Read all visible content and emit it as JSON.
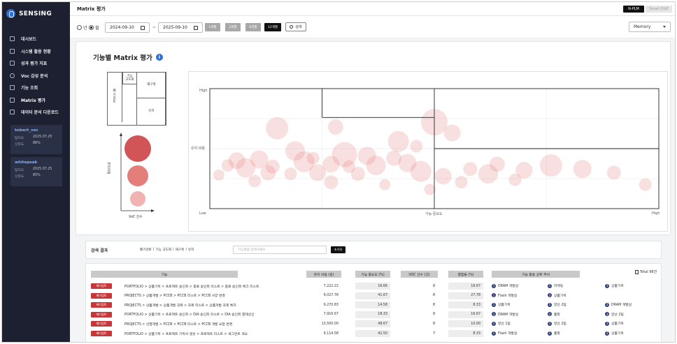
{
  "app": {
    "name": "SENSING",
    "page_title": "Matrix 평가"
  },
  "top_buttons": {
    "nplm": "N-PLM",
    "smart": "Smart D&E"
  },
  "sidebar": {
    "items": [
      {
        "label": "대시보드",
        "icon": "dashboard-icon"
      },
      {
        "label": "시스템 활용 현황",
        "icon": "monitor-icon"
      },
      {
        "label": "성과 평가 지표",
        "icon": "chart-icon"
      },
      {
        "label": "Voc 감성 분석",
        "icon": "smile-icon"
      },
      {
        "label": "기능 조회",
        "icon": "search-icon"
      },
      {
        "label": "Matrix 평가",
        "icon": "matrix-icon"
      },
      {
        "label": "데이터 분석 다운로드",
        "icon": "download-icon"
      }
    ],
    "users": [
      {
        "name": "kobert_voc",
        "date_label": "탐지도",
        "date": "2025.07.25",
        "score_label": "신뢰도",
        "score": "86%"
      },
      {
        "name": "whitepeak",
        "date_label": "탐지도",
        "date": "2025.07.25",
        "score_label": "신뢰도",
        "score": "85%"
      }
    ]
  },
  "filter": {
    "radio_year": "년",
    "radio_month": "월",
    "date_from": "2024-09-10",
    "date_to": "2025-09-10",
    "date_sep": "~",
    "ranges": [
      "1개월",
      "3개월",
      "6개월",
      "12개월"
    ],
    "search_label": "검색",
    "select_value": "Memory"
  },
  "matrix": {
    "title": "기능별 Matrix 평가",
    "info": "i",
    "legend": {
      "top_left": "기능\n고도화",
      "top_right": "재구축",
      "left": "폐\n기\n검\n토",
      "bottom_right": "유지",
      "y_label": "유지비용",
      "x_label": "VoC 건수"
    },
    "axes": {
      "y_high": "High",
      "y_mid": "유지 비용",
      "x_low": "Low",
      "x_mid": "기능 중요도",
      "x_high": "High"
    }
  },
  "chart_data": {
    "type": "scatter",
    "xlabel": "기능 중요도",
    "ylabel": "유지 비용",
    "x_range_labels": [
      "Low",
      "High"
    ],
    "y_range_labels": [
      "Low",
      "High"
    ],
    "xlim": [
      0,
      100
    ],
    "ylim": [
      0,
      100
    ],
    "points": [
      {
        "x": 15,
        "y": 67,
        "r": 16
      },
      {
        "x": 28,
        "y": 68,
        "r": 11
      },
      {
        "x": 50,
        "y": 72,
        "r": 19
      },
      {
        "x": 54,
        "y": 63,
        "r": 12
      },
      {
        "x": 42,
        "y": 56,
        "r": 15
      },
      {
        "x": 46,
        "y": 52,
        "r": 9
      },
      {
        "x": 19,
        "y": 48,
        "r": 14
      },
      {
        "x": 30,
        "y": 45,
        "r": 18
      },
      {
        "x": 35,
        "y": 44,
        "r": 13
      },
      {
        "x": 23,
        "y": 42,
        "r": 9
      },
      {
        "x": 6,
        "y": 40,
        "r": 12
      },
      {
        "x": 11,
        "y": 41,
        "r": 13
      },
      {
        "x": 4,
        "y": 36,
        "r": 9
      },
      {
        "x": 14,
        "y": 35,
        "r": 10
      },
      {
        "x": 21,
        "y": 39,
        "r": 15
      },
      {
        "x": 27,
        "y": 37,
        "r": 12
      },
      {
        "x": 31,
        "y": 35,
        "r": 9
      },
      {
        "x": 37,
        "y": 36,
        "r": 14
      },
      {
        "x": 41,
        "y": 42,
        "r": 11
      },
      {
        "x": 44,
        "y": 38,
        "r": 13
      },
      {
        "x": 8,
        "y": 34,
        "r": 14
      },
      {
        "x": 13,
        "y": 30,
        "r": 11
      },
      {
        "x": 18,
        "y": 29,
        "r": 9
      },
      {
        "x": 24,
        "y": 30,
        "r": 12
      },
      {
        "x": 33,
        "y": 29,
        "r": 10
      },
      {
        "x": 47,
        "y": 31,
        "r": 15
      },
      {
        "x": 52,
        "y": 27,
        "r": 12
      },
      {
        "x": 58,
        "y": 33,
        "r": 10
      },
      {
        "x": 62,
        "y": 29,
        "r": 14
      },
      {
        "x": 64,
        "y": 37,
        "r": 11
      },
      {
        "x": 70,
        "y": 32,
        "r": 12
      },
      {
        "x": 76,
        "y": 36,
        "r": 16
      },
      {
        "x": 83,
        "y": 33,
        "r": 13
      },
      {
        "x": 90,
        "y": 30,
        "r": 10
      },
      {
        "x": 97,
        "y": 20,
        "r": 9
      },
      {
        "x": 27,
        "y": 22,
        "r": 10
      },
      {
        "x": 10,
        "y": 23,
        "r": 9
      },
      {
        "x": 39,
        "y": 20,
        "r": 8
      },
      {
        "x": 56,
        "y": 22,
        "r": 9
      },
      {
        "x": 2,
        "y": 28,
        "r": 8
      },
      {
        "x": 49,
        "y": 16,
        "r": 8
      },
      {
        "x": 68,
        "y": 24,
        "r": 9
      }
    ]
  },
  "legend_bubbles": [
    1,
    0.78,
    0.55
  ],
  "results": {
    "title": "검색 결과",
    "tabs": [
      "폐기검토",
      "기능 고도화",
      "재구축",
      "유지"
    ],
    "filter_placeholder": "기능명을 입력하세요",
    "reset_label": "초기화",
    "total": "Total 96건",
    "columns": [
      "기능",
      "유지 비용 (원)",
      "기능 중요도 (%)",
      "VOC 건수 (건)",
      "결함율 (%)",
      "기능 활용 상위 부서"
    ],
    "rows": [
      {
        "badge": "폐기검토",
        "path": "PORTFOLIO > 상품기획 > 프로젝트 승인회 > 종료 승인회 리스트 > 종료 승인회 체크 리스트",
        "cost": "7,222.22",
        "importance": "16.66",
        "voc": "8",
        "defect": "16.67",
        "depts": [
          "DRAM 개발실",
          "마케팅",
          "상품기획"
        ]
      },
      {
        "badge": "폐기검토",
        "path": "PROJECTS > 상품개발 > PCCB > PCCB 리스트 > PCCB 사양 변경",
        "cost": "9,027.78",
        "importance": "41.67",
        "voc": "8",
        "defect": "27.78",
        "depts": [
          "Flash 개발실",
          "상품기획",
          ""
        ]
      },
      {
        "badge": "폐기검토",
        "path": "PROJECTS > 상품개발 > 상품개발 과제 > 과제 리스트 > 상품개발 과제 특허",
        "cost": "9,270.83",
        "importance": "14.58",
        "voc": "8",
        "defect": "8.33",
        "depts": [
          "상품기획",
          "양산 2팀",
          "DRAM 개발실"
        ]
      },
      {
        "badge": "폐기검토",
        "path": "PORTFOLIO > 상품기획 > 프로젝트 승인회 > DIA 승인회 리스트 > DIA 승인회 결재상신",
        "cost": "7,916.67",
        "importance": "18.33",
        "voc": "8",
        "defect": "16.67",
        "depts": [
          "DRAM 개발실",
          "품질",
          "양산 2팀"
        ]
      },
      {
        "badge": "폐기검토",
        "path": "PROJECTS > 선행개발 > PCCB > PCCB 리스트 > PCCB 개발 요청 변경",
        "cost": "13,500.00",
        "importance": "48.67",
        "voc": "8",
        "defect": "10.00",
        "depts": [
          "양산 1팀",
          "양산 2팀",
          "상품기획"
        ]
      },
      {
        "badge": "폐기검토",
        "path": "PORTFOLIO > 상품기획 > 프로젝트 기획서 생성 > 프로젝트 리스트 > 세그먼트 개요",
        "cost": "9,114.58",
        "importance": "42.50",
        "voc": "7",
        "defect": "8.33",
        "depts": [
          "Flash 개발실",
          "품질",
          "상품기획"
        ]
      }
    ]
  },
  "colors": {
    "accent": "#2f6fd6",
    "sidebar_bg": "#1c2030",
    "badge_red": "#c9363a",
    "bubble": "#e57373"
  }
}
